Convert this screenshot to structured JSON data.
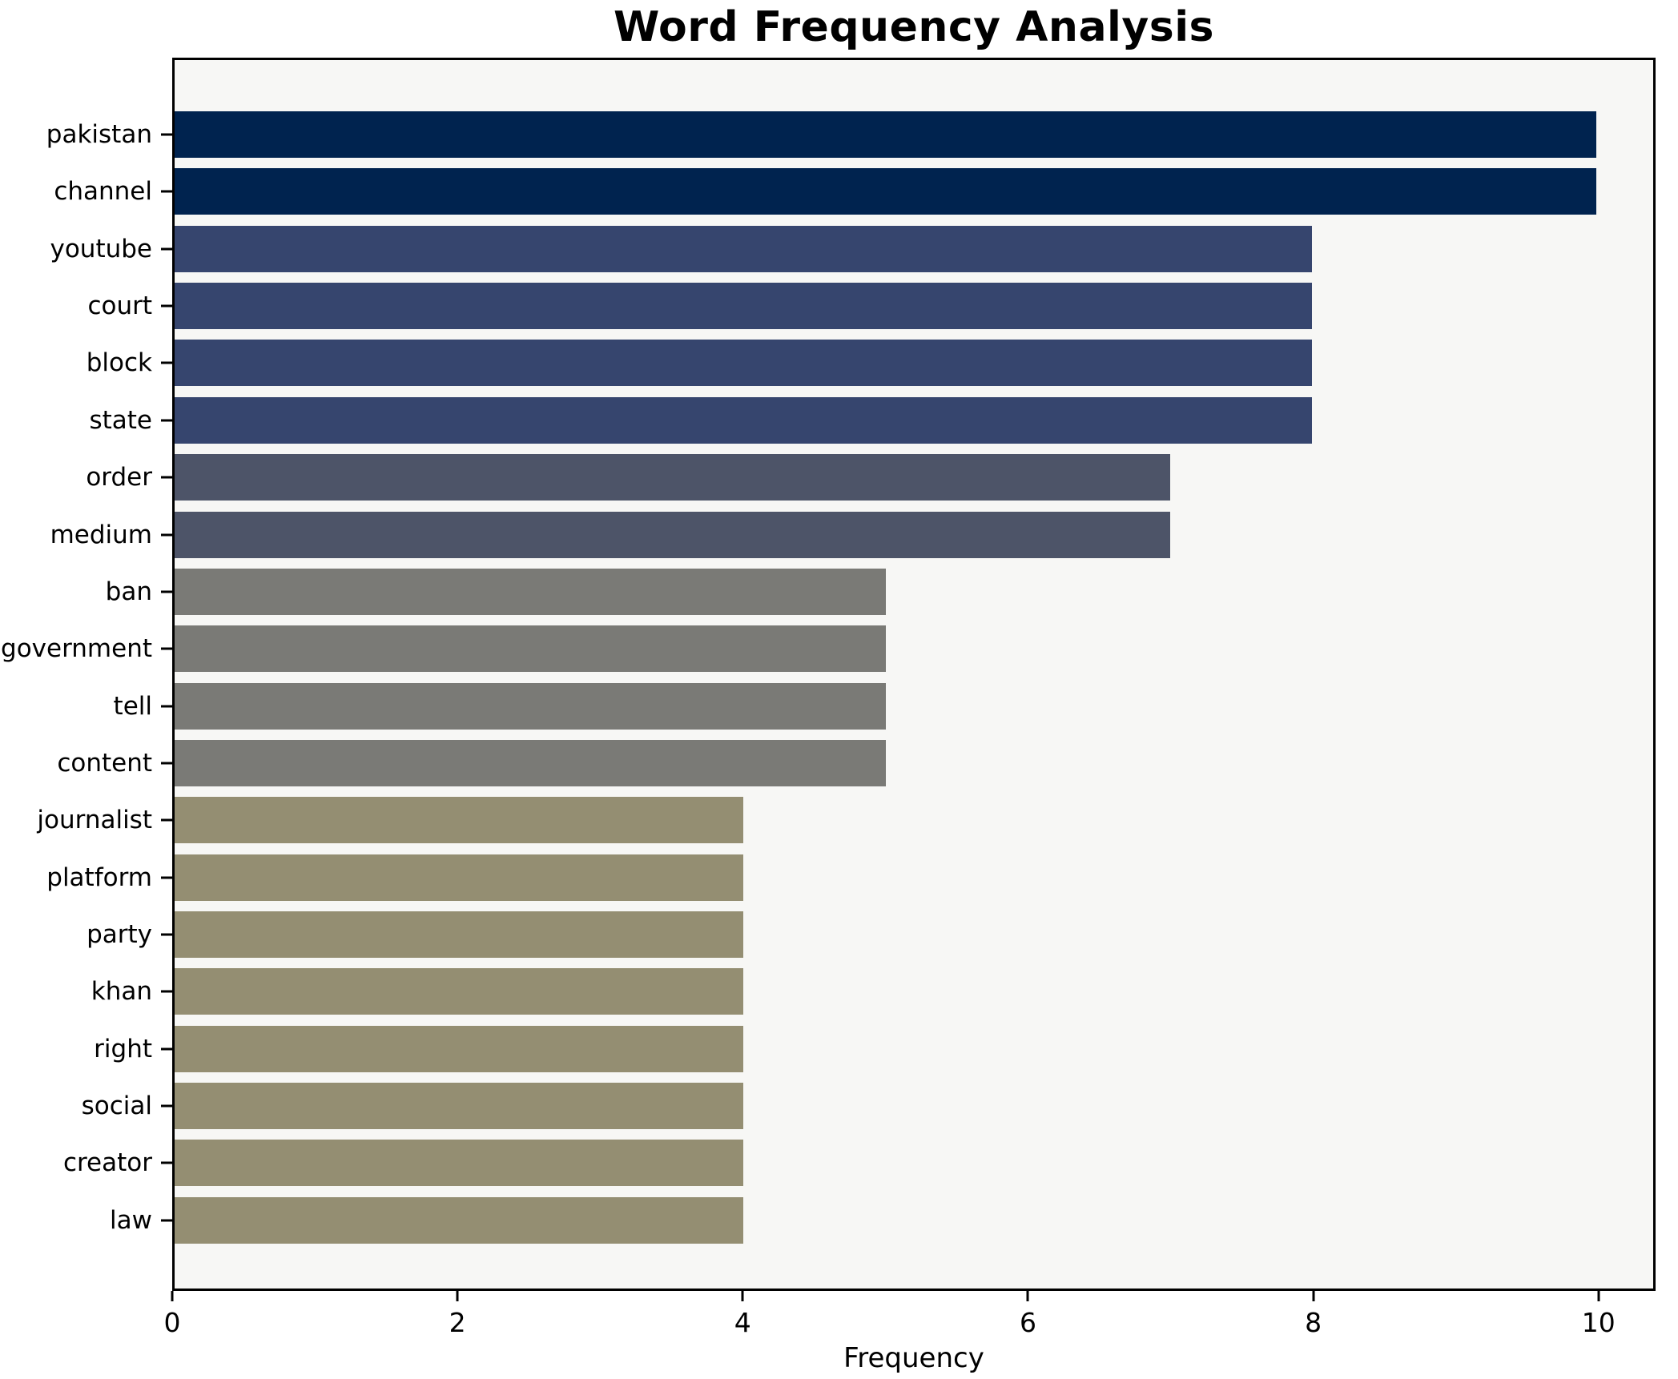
{
  "figure": {
    "background": "#ffffff",
    "plot_background": "#f7f7f5",
    "frame_color": "#000000"
  },
  "chart_data": {
    "type": "bar",
    "orientation": "horizontal",
    "title": "Word Frequency Analysis",
    "xlabel": "Frequency",
    "ylabel": "",
    "categories": [
      "pakistan",
      "channel",
      "youtube",
      "court",
      "block",
      "state",
      "order",
      "medium",
      "ban",
      "government",
      "tell",
      "content",
      "journalist",
      "platform",
      "party",
      "khan",
      "right",
      "social",
      "creator",
      "law"
    ],
    "values": [
      10,
      10,
      8,
      8,
      8,
      8,
      7,
      7,
      5,
      5,
      5,
      5,
      4,
      4,
      4,
      4,
      4,
      4,
      4,
      4
    ],
    "bar_colors": [
      "#00234f",
      "#00234f",
      "#36456e",
      "#36456e",
      "#36456e",
      "#36456e",
      "#4d5468",
      "#4d5468",
      "#7a7a76",
      "#7a7a76",
      "#7a7a76",
      "#7a7a76",
      "#948e72",
      "#948e72",
      "#948e72",
      "#948e72",
      "#948e72",
      "#948e72",
      "#948e72",
      "#948e72"
    ],
    "xlim": [
      0,
      10.4
    ],
    "xticks": [
      0,
      2,
      4,
      6,
      8,
      10
    ],
    "grid": false,
    "legend": null
  }
}
